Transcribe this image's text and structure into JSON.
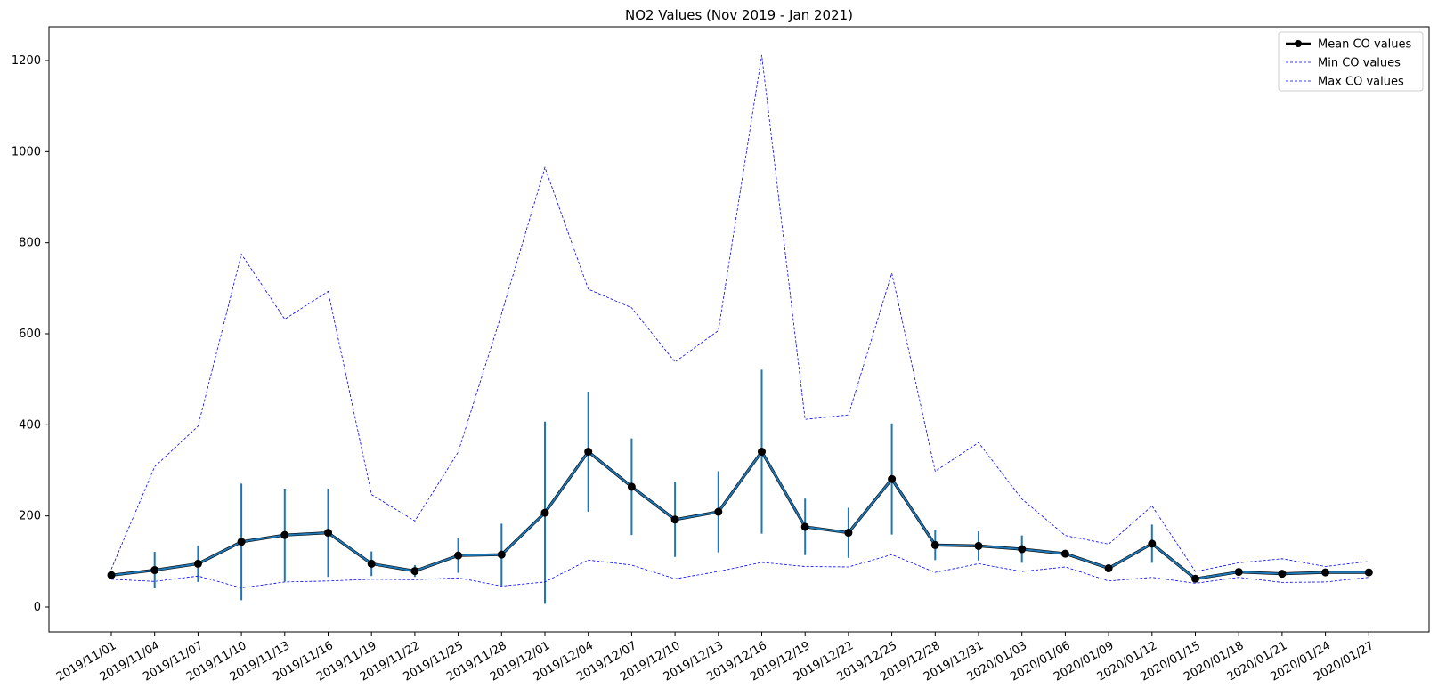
{
  "chart_data": {
    "type": "line",
    "title": "NO2 Values (Nov 2019 - Jan 2021)",
    "xlabel": "",
    "ylabel": "",
    "ylim": [
      -50,
      1270
    ],
    "yticks": [
      0,
      200,
      400,
      600,
      800,
      1000,
      1200
    ],
    "grid": false,
    "legend_position": "top-right",
    "categories": [
      "2019/11/01",
      "2019/11/04",
      "2019/11/07",
      "2019/11/10",
      "2019/11/13",
      "2019/11/16",
      "2019/11/19",
      "2019/11/22",
      "2019/11/25",
      "2019/11/28",
      "2019/12/01",
      "2019/12/04",
      "2019/12/07",
      "2019/12/10",
      "2019/12/13",
      "2019/12/16",
      "2019/12/19",
      "2019/12/22",
      "2019/12/25",
      "2019/12/28",
      "2019/12/31",
      "2020/01/03",
      "2020/01/06",
      "2020/01/09",
      "2020/01/12",
      "2020/01/15",
      "2020/01/18",
      "2020/01/21",
      "2020/01/24",
      "2020/01/27"
    ],
    "series": [
      {
        "name": "Mean CO values",
        "color": "#000000",
        "line_color": "#1f77b4",
        "style": "solid-marker",
        "values": [
          70,
          81,
          95,
          143,
          158,
          163,
          95,
          79,
          113,
          115,
          207,
          341,
          264,
          192,
          209,
          341,
          176,
          163,
          281,
          136,
          134,
          127,
          117,
          85,
          139,
          62,
          77,
          73,
          76,
          76
        ],
        "error": [
          0,
          40,
          40,
          128,
          102,
          97,
          27,
          13,
          38,
          68,
          200,
          132,
          106,
          82,
          89,
          180,
          62,
          55,
          122,
          33,
          32,
          30,
          0,
          0,
          42,
          0,
          0,
          0,
          0,
          0
        ]
      },
      {
        "name": "Min CO values",
        "color": "#0000ff",
        "style": "dashed",
        "values": [
          61,
          56,
          68,
          42,
          55,
          57,
          61,
          60,
          64,
          46,
          55,
          103,
          92,
          62,
          78,
          98,
          89,
          88,
          115,
          76,
          95,
          78,
          88,
          57,
          65,
          52,
          65,
          54,
          55,
          65
        ]
      },
      {
        "name": "Max CO values",
        "color": "#0000ff",
        "style": "dashed",
        "values": [
          83,
          308,
          397,
          775,
          632,
          693,
          247,
          189,
          340,
          644,
          965,
          698,
          657,
          538,
          607,
          1212,
          412,
          422,
          733,
          298,
          361,
          237,
          157,
          138,
          222,
          78,
          97,
          106,
          89,
          100
        ]
      }
    ]
  }
}
